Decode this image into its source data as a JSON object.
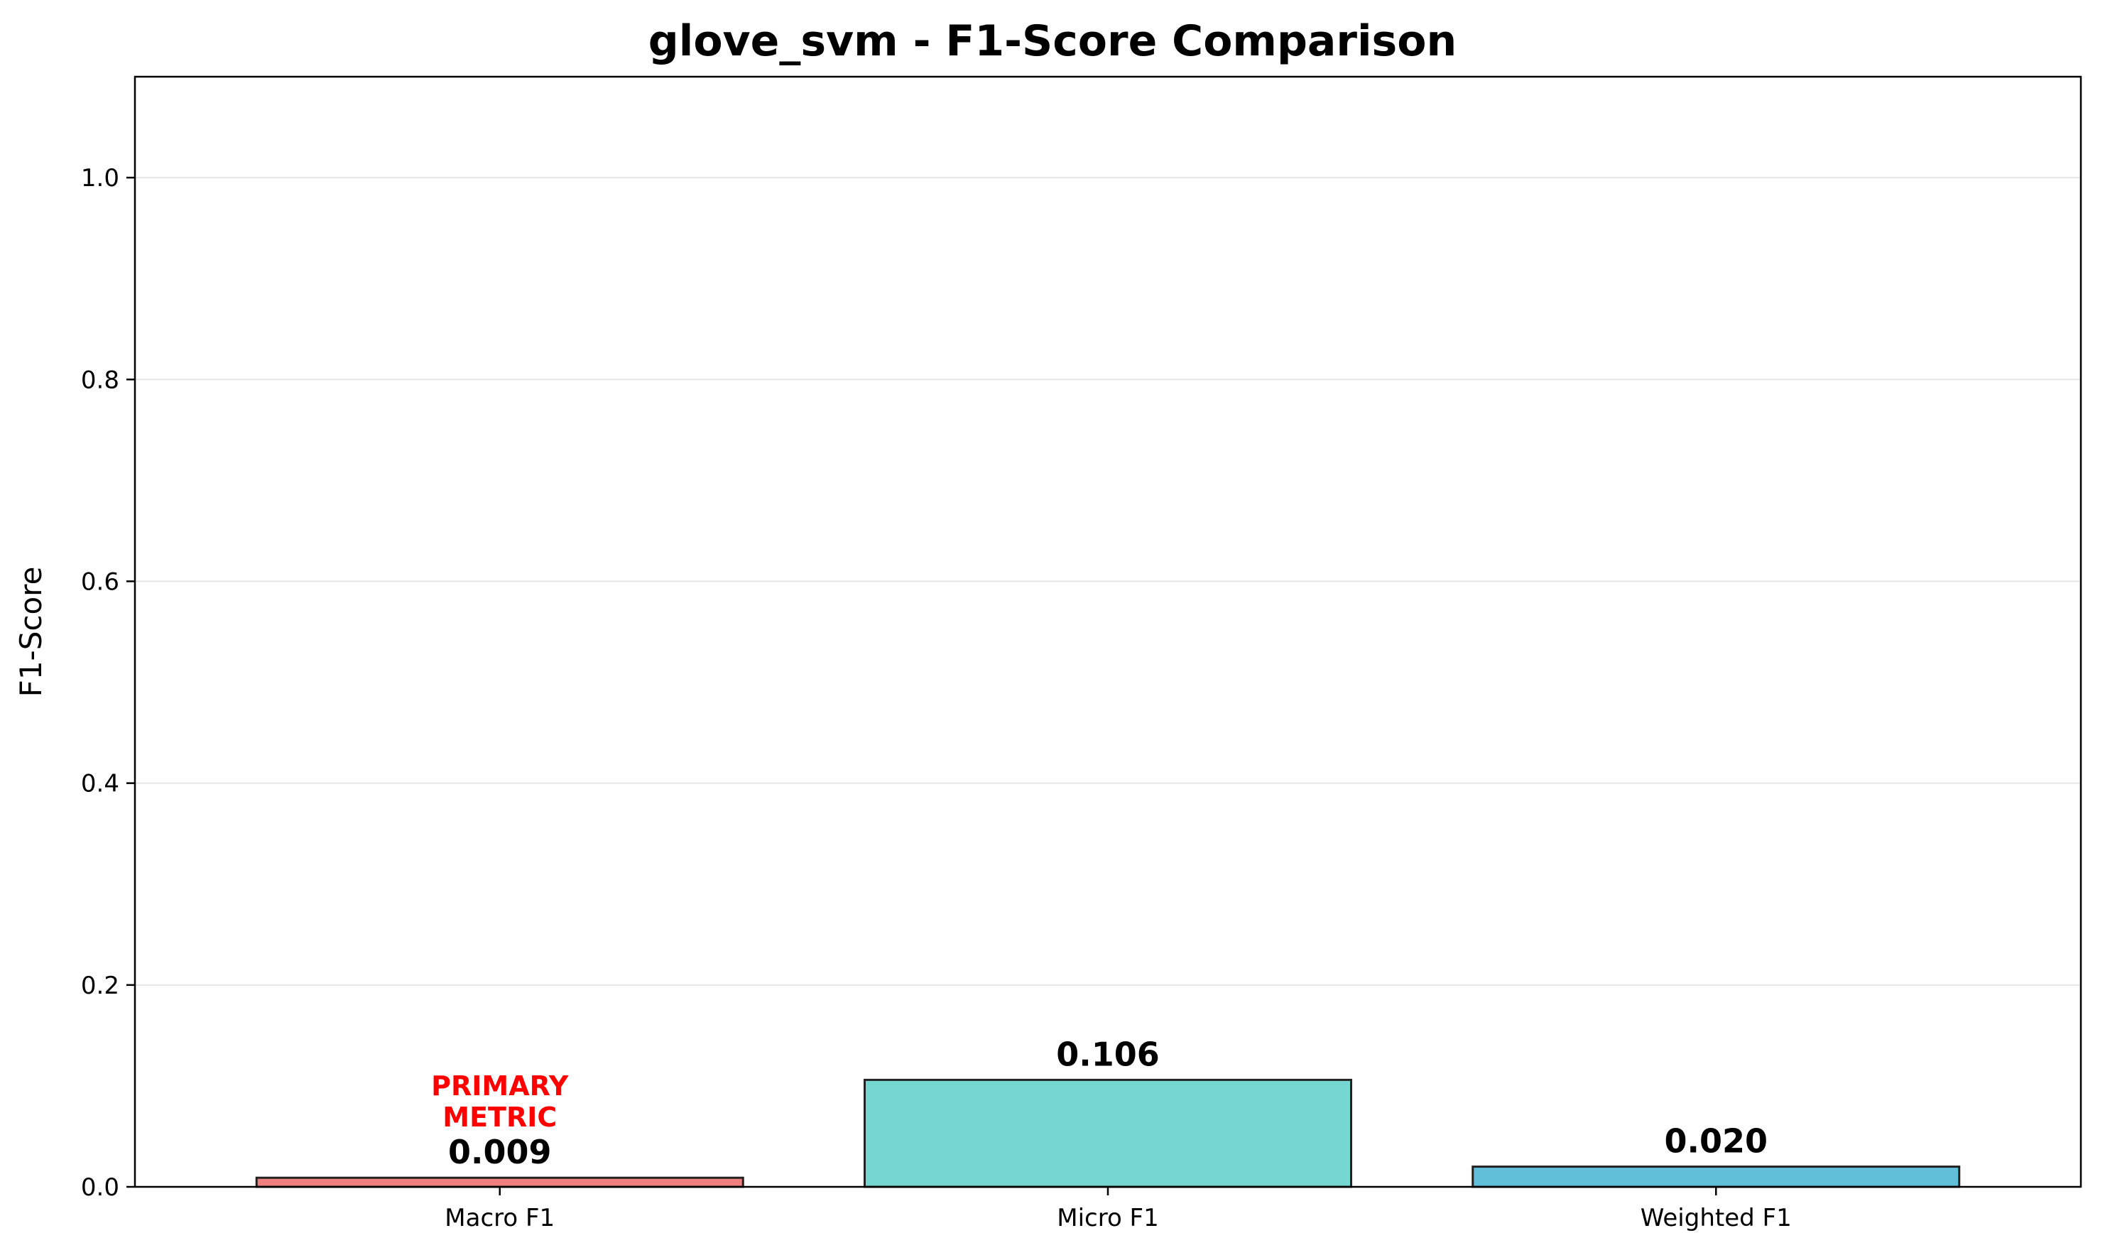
{
  "chart_data": {
    "type": "bar",
    "title": "glove_svm - F1-Score Comparison",
    "xlabel": "",
    "ylabel": "F1-Score",
    "categories": [
      "Macro F1",
      "Micro F1",
      "Weighted F1"
    ],
    "values": [
      0.009,
      0.106,
      0.02
    ],
    "value_labels": [
      "0.009",
      "0.106",
      "0.020"
    ],
    "bar_colors": [
      "#f08080",
      "#76d7d1",
      "#62bfd9"
    ],
    "edge_color": "#222222",
    "ylim": [
      0,
      1.1
    ],
    "yticks": [
      0.0,
      0.2,
      0.4,
      0.6,
      0.8,
      1.0
    ],
    "ytick_labels": [
      "0.0",
      "0.2",
      "0.4",
      "0.6",
      "0.8",
      "1.0"
    ],
    "grid": "y-major",
    "grid_color": "#e6e6e6",
    "annotation": {
      "category": "Macro F1",
      "lines": [
        "PRIMARY",
        "METRIC"
      ],
      "color": "#ff0000"
    }
  }
}
